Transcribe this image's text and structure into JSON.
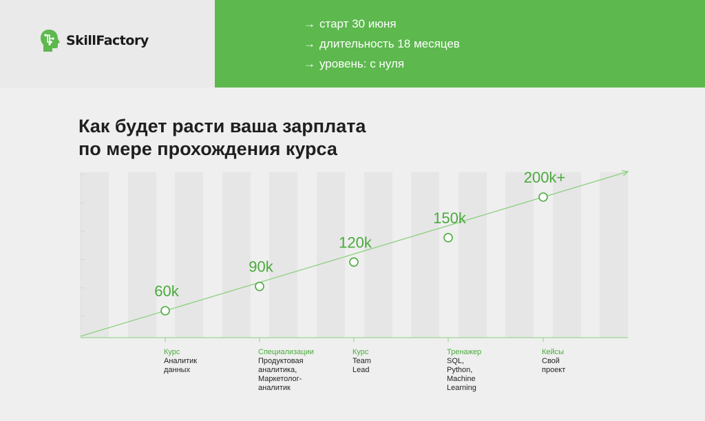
{
  "brand": {
    "name": "SkillFactory",
    "logo_icon": "head-circuit-icon",
    "accent": "#5db84e"
  },
  "course_facts": [
    {
      "arrow": "→",
      "text": "старт 30 июня"
    },
    {
      "arrow": "→",
      "text": "длительность 18 месяцев"
    },
    {
      "arrow": "→",
      "text": "уровень: с нуля"
    }
  ],
  "heading": {
    "line1": "Как будет расти ваша зарплата",
    "line2": "по мере прохождения курса"
  },
  "chart_data": {
    "type": "line",
    "title": "Как будет расти ваша зарплата по мере прохождения курса",
    "series": [
      {
        "values": [
          60,
          90,
          120,
          150,
          200
        ]
      }
    ],
    "data_labels": [
      "60k",
      "90k",
      "120k",
      "150k",
      "200k+"
    ],
    "stages": [
      {
        "kind": "Курс",
        "name": "Аналитик\nданных"
      },
      {
        "kind": "Специализации",
        "name": "Продуктовая\nаналитика,\nМаркетолог-\nаналитик"
      },
      {
        "kind": "Курс",
        "name": "Team\nLead"
      },
      {
        "kind": "Тренажер",
        "name": "SQL,\nPython,\nMachine\nLearning"
      },
      {
        "kind": "Кейсы",
        "name": "Свой\nпроект"
      }
    ],
    "ylim": [
      30,
      230
    ],
    "grid": true,
    "line_color": "#8bd07e",
    "label_color": "#4aaa3c"
  }
}
